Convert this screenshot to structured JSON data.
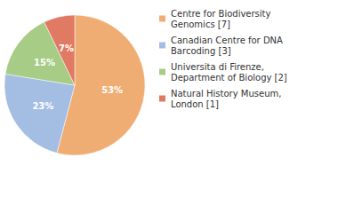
{
  "chart_data": {
    "type": "pie",
    "categories": [
      "Centre for Biodiversity Genomics [7]",
      "Canadian Centre for DNA Barcoding [3]",
      "Universita di Firenze, Department of Biology [2]",
      "Natural History Museum, London [1]"
    ],
    "values": [
      53,
      23,
      15,
      7
    ],
    "value_labels": [
      "53%",
      "23%",
      "15%",
      "7%"
    ],
    "colors": [
      "#f0ad73",
      "#a4bde3",
      "#a7cc86",
      "#e07a62"
    ],
    "data_labels": true,
    "legend": "top-right"
  }
}
